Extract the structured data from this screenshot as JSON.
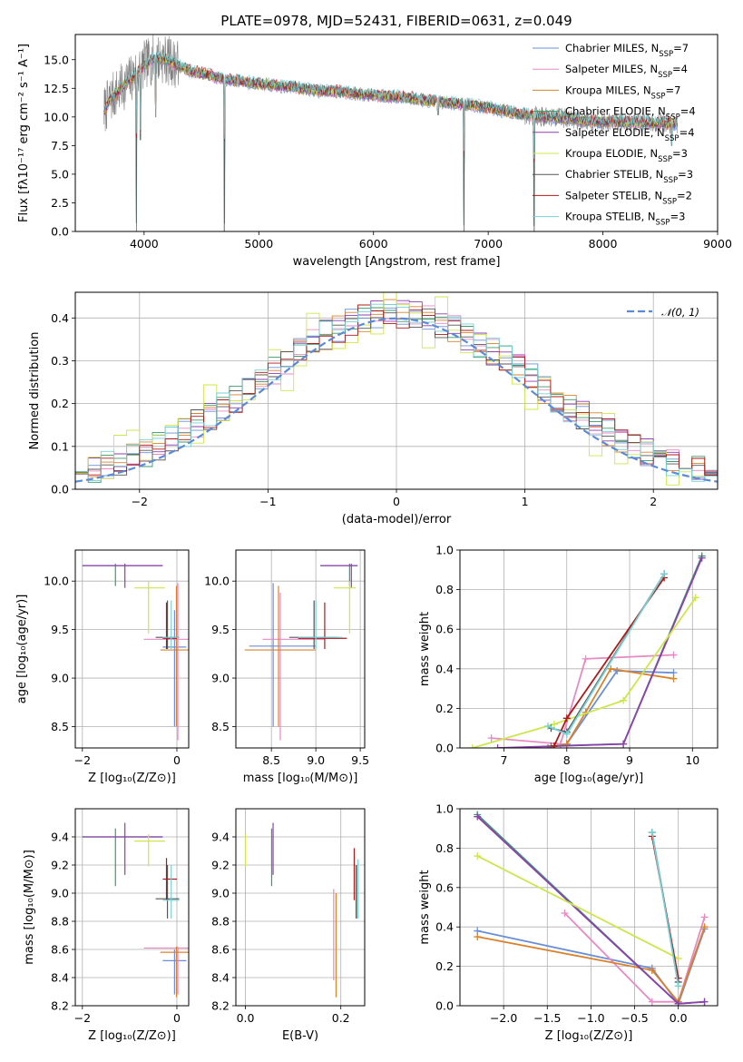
{
  "figure_title": "PLATE=0978, MJD=52431, FIBERID=0631, z=0.049",
  "models": [
    {
      "name": "Chabrier MILES",
      "n_ssp": "7",
      "color": "#6a8fd8"
    },
    {
      "name": "Salpeter MILES",
      "n_ssp": "4",
      "color": "#e78ac3"
    },
    {
      "name": "Kroupa MILES",
      "n_ssp": "7",
      "color": "#d9822b"
    },
    {
      "name": "Chabrier ELODIE",
      "n_ssp": "4",
      "color": "#3a9a6a"
    },
    {
      "name": "Salpeter ELODIE",
      "n_ssp": "4",
      "color": "#8e3fb0"
    },
    {
      "name": "Kroupa ELODIE",
      "n_ssp": "3",
      "color": "#cde64a"
    },
    {
      "name": "Chabrier STELIB",
      "n_ssp": "3",
      "color": "#555555"
    },
    {
      "name": "Salpeter STELIB",
      "n_ssp": "2",
      "color": "#b01818"
    },
    {
      "name": "Kroupa STELIB",
      "n_ssp": "3",
      "color": "#74d2d6"
    }
  ],
  "chart_data": [
    {
      "id": "spectrum",
      "type": "line",
      "xlabel": "wavelength [Angstrom, rest frame]",
      "ylabel": "Flux [fλ10⁻¹⁷ erg cm⁻² s⁻¹ A⁻¹]",
      "xlim": [
        3400,
        9000
      ],
      "ylim": [
        0,
        17.2
      ],
      "xticks": [
        "4000",
        "5000",
        "6000",
        "7000",
        "8000",
        "9000"
      ],
      "yticks": [
        "0.0",
        "2.5",
        "5.0",
        "7.5",
        "10.0",
        "12.5",
        "15.0"
      ],
      "observed_color": "#808080",
      "x": [
        3650,
        3700,
        3800,
        3900,
        4000,
        4100,
        4200,
        4300,
        4400,
        4500,
        4700,
        4900,
        5100,
        5300,
        5500,
        5700,
        5900,
        6100,
        6300,
        6500,
        6700,
        6900,
        7100,
        7300,
        7500,
        7700,
        7900,
        8100,
        8300,
        8500,
        8650
      ],
      "y": [
        10.5,
        11.5,
        12.5,
        13.5,
        14.5,
        15.2,
        15.0,
        14.5,
        14.0,
        13.8,
        13.3,
        13.0,
        12.8,
        12.6,
        12.3,
        12.2,
        12.0,
        11.8,
        11.7,
        11.4,
        11.2,
        11.0,
        10.6,
        10.2,
        10.0,
        9.9,
        9.6,
        9.6,
        9.5,
        9.5,
        9.4
      ],
      "absorption_dips": [
        [
          3933,
          0.0
        ],
        [
          3968,
          8.0
        ],
        [
          4102,
          10.0
        ],
        [
          4700,
          0.0
        ],
        [
          6563,
          10.2
        ],
        [
          6790,
          0.0
        ],
        [
          7400,
          0.0
        ],
        [
          8600,
          7.5
        ],
        [
          8660,
          8.5
        ]
      ]
    },
    {
      "id": "residuals",
      "type": "histogram",
      "xlabel": "(data-model)/error",
      "ylabel": "Normed distribution",
      "xlim": [
        -2.5,
        2.5
      ],
      "ylim": [
        0,
        0.46
      ],
      "xticks": [
        "−2",
        "−1",
        "0",
        "1",
        "2"
      ],
      "yticks": [
        "0.0",
        "0.1",
        "0.2",
        "0.3",
        "0.4"
      ],
      "legend": "𝒩(0, 1)",
      "curve_color": "#5b8ad8",
      "bin_width": 0.1
    },
    {
      "id": "age_vs_Z",
      "type": "scatter",
      "xlabel": "Z [log₁₀(Z/Z⊙)]",
      "ylabel": "age  [log₁₀(age/yr)]",
      "xlim": [
        -2.15,
        0.25
      ],
      "ylim": [
        8.28,
        10.32
      ],
      "xticks": [
        "−2",
        "0"
      ],
      "yticks": [
        "8.5",
        "9.0",
        "9.5",
        "10.0"
      ],
      "points": [
        {
          "m": 0,
          "x": -0.05,
          "y": 9.32,
          "xe": [
            -0.3,
            0.2
          ],
          "ye": [
            8.5,
            9.7
          ]
        },
        {
          "m": 1,
          "x": 0.02,
          "y": 9.4,
          "xe": [
            -0.7,
            0.3
          ],
          "ye": [
            8.36,
            9.98
          ]
        },
        {
          "m": 2,
          "x": -0.01,
          "y": 9.29,
          "xe": [
            -0.35,
            0.3
          ],
          "ye": [
            8.5,
            9.95
          ]
        },
        {
          "m": 3,
          "x": -1.3,
          "y": 10.16,
          "xe": [
            -2.0,
            -0.3
          ],
          "ye": [
            9.95,
            10.18
          ]
        },
        {
          "m": 4,
          "x": -1.1,
          "y": 10.16,
          "xe": [
            -2.0,
            -0.3
          ],
          "ye": [
            9.93,
            10.18
          ]
        },
        {
          "m": 5,
          "x": -0.6,
          "y": 9.93,
          "xe": [
            -0.9,
            -0.25
          ],
          "ye": [
            9.46,
            10.0
          ]
        },
        {
          "m": 6,
          "x": -0.2,
          "y": 9.42,
          "xe": [
            -0.45,
            0.05
          ],
          "ye": [
            9.3,
            9.8
          ]
        },
        {
          "m": 7,
          "x": -0.22,
          "y": 9.41,
          "xe": [
            -0.3,
            0.0
          ],
          "ye": [
            9.3,
            9.78
          ]
        },
        {
          "m": 8,
          "x": -0.12,
          "y": 9.42,
          "xe": [
            -0.3,
            0.05
          ],
          "ye": [
            9.3,
            9.8
          ]
        }
      ]
    },
    {
      "id": "age_vs_mass",
      "type": "scatter",
      "xlabel": "mass [log₁₀(M/M⊙)]",
      "ylabel": "",
      "xlim": [
        8.1,
        9.55
      ],
      "ylim": [
        8.28,
        10.32
      ],
      "xticks": [
        "8.5",
        "9.0",
        "9.5"
      ],
      "yticks": [
        "8.5",
        "9.0",
        "9.5",
        "10.0"
      ],
      "points": [
        {
          "m": 0,
          "x": 8.52,
          "y": 9.33,
          "xe": [
            8.25,
            9.0
          ],
          "ye": [
            8.5,
            9.98
          ]
        },
        {
          "m": 1,
          "x": 8.6,
          "y": 9.4,
          "xe": [
            8.4,
            9.1
          ],
          "ye": [
            8.36,
            9.88
          ]
        },
        {
          "m": 2,
          "x": 8.58,
          "y": 9.29,
          "xe": [
            8.2,
            9.0
          ],
          "ye": [
            8.5,
            9.95
          ]
        },
        {
          "m": 3,
          "x": 9.38,
          "y": 10.16,
          "xe": [
            9.05,
            9.47
          ],
          "ye": [
            9.95,
            10.18
          ]
        },
        {
          "m": 4,
          "x": 9.4,
          "y": 10.16,
          "xe": [
            9.05,
            9.47
          ],
          "ye": [
            9.93,
            10.18
          ]
        },
        {
          "m": 5,
          "x": 9.38,
          "y": 9.93,
          "xe": [
            9.2,
            9.45
          ],
          "ye": [
            9.46,
            10.0
          ]
        },
        {
          "m": 6,
          "x": 8.98,
          "y": 9.42,
          "xe": [
            8.7,
            9.25
          ],
          "ye": [
            9.3,
            9.8
          ]
        },
        {
          "m": 7,
          "x": 9.1,
          "y": 9.41,
          "xe": [
            8.8,
            9.35
          ],
          "ye": [
            9.3,
            9.78
          ]
        },
        {
          "m": 8,
          "x": 9.0,
          "y": 9.42,
          "xe": [
            8.8,
            9.3
          ],
          "ye": [
            9.3,
            9.8
          ]
        }
      ]
    },
    {
      "id": "weight_vs_age",
      "type": "line",
      "xlabel": "age  [log₁₀(age/yr)]",
      "ylabel": "mass weight",
      "xlim": [
        6.3,
        10.4
      ],
      "ylim": [
        0,
        1.0
      ],
      "xticks": [
        "7",
        "8",
        "9",
        "10"
      ],
      "yticks": [
        "0.0",
        "0.2",
        "0.4",
        "0.6",
        "0.8",
        "1.0"
      ],
      "series": [
        {
          "m": 0,
          "x": [
            7.7,
            8.0,
            8.8,
            9.7
          ],
          "y": [
            0.0,
            0.02,
            0.39,
            0.38
          ]
        },
        {
          "m": 1,
          "x": [
            6.8,
            7.9,
            8.3,
            9.7
          ],
          "y": [
            0.05,
            0.02,
            0.45,
            0.47
          ]
        },
        {
          "m": 2,
          "x": [
            7.7,
            8.0,
            8.3,
            8.7,
            9.7
          ],
          "y": [
            0.0,
            0.02,
            0.18,
            0.4,
            0.35
          ]
        },
        {
          "m": 3,
          "x": [
            7.75,
            8.9,
            10.15
          ],
          "y": [
            0.01,
            0.02,
            0.97
          ]
        },
        {
          "m": 4,
          "x": [
            6.9,
            8.9,
            10.15
          ],
          "y": [
            0.0,
            0.02,
            0.96
          ]
        },
        {
          "m": 5,
          "x": [
            6.5,
            7.8,
            8.9,
            10.05
          ],
          "y": [
            0.0,
            0.12,
            0.24,
            0.76
          ]
        },
        {
          "m": 6,
          "x": [
            7.75,
            8.0,
            9.55
          ],
          "y": [
            0.1,
            0.08,
            0.88
          ]
        },
        {
          "m": 7,
          "x": [
            7.8,
            8.0,
            9.55
          ],
          "y": [
            0.01,
            0.15,
            0.86
          ]
        },
        {
          "m": 8,
          "x": [
            7.7,
            8.0,
            9.55
          ],
          "y": [
            0.11,
            0.07,
            0.88
          ]
        }
      ]
    },
    {
      "id": "mass_vs_Z",
      "type": "scatter",
      "xlabel": "Z [log₁₀(Z/Z⊙)]",
      "ylabel": "mass [log₁₀(M/M⊙)]",
      "xlim": [
        -2.15,
        0.25
      ],
      "ylim": [
        8.2,
        9.6
      ],
      "xticks": [
        "−2",
        "0"
      ],
      "yticks": [
        "8.2",
        "8.4",
        "8.6",
        "8.8",
        "9.0",
        "9.2",
        "9.4"
      ],
      "points": [
        {
          "m": 0,
          "x": -0.05,
          "y": 8.52,
          "xe": [
            -0.3,
            0.2
          ],
          "ye": [
            8.28,
            8.6
          ]
        },
        {
          "m": 1,
          "x": 0.02,
          "y": 8.61,
          "xe": [
            -0.7,
            0.3
          ],
          "ye": [
            8.28,
            8.62
          ]
        },
        {
          "m": 2,
          "x": -0.01,
          "y": 8.58,
          "xe": [
            -0.35,
            0.3
          ],
          "ye": [
            8.26,
            8.62
          ]
        },
        {
          "m": 3,
          "x": -1.3,
          "y": 9.4,
          "xe": [
            -2.0,
            -0.3
          ],
          "ye": [
            9.05,
            9.46
          ]
        },
        {
          "m": 4,
          "x": -1.1,
          "y": 9.4,
          "xe": [
            -2.0,
            -0.3
          ],
          "ye": [
            9.13,
            9.5
          ]
        },
        {
          "m": 5,
          "x": -0.6,
          "y": 9.37,
          "xe": [
            -0.9,
            -0.25
          ],
          "ye": [
            9.19,
            9.42
          ]
        },
        {
          "m": 6,
          "x": -0.2,
          "y": 8.96,
          "xe": [
            -0.45,
            0.05
          ],
          "ye": [
            8.82,
            9.2
          ]
        },
        {
          "m": 7,
          "x": -0.22,
          "y": 9.1,
          "xe": [
            -0.3,
            0.0
          ],
          "ye": [
            8.95,
            9.25
          ]
        },
        {
          "m": 8,
          "x": -0.12,
          "y": 8.95,
          "xe": [
            -0.3,
            0.05
          ],
          "ye": [
            8.82,
            9.2
          ]
        }
      ]
    },
    {
      "id": "mass_vs_ebv",
      "type": "scatter",
      "xlabel": "E(B-V)",
      "ylabel": "",
      "xlim": [
        -0.02,
        0.25
      ],
      "ylim": [
        8.2,
        9.6
      ],
      "xticks": [
        "0.0",
        "0.2"
      ],
      "yticks": [
        "8.2",
        "8.4",
        "8.6",
        "8.8",
        "9.0",
        "9.2",
        "9.4"
      ],
      "points": [
        {
          "m": 0,
          "x": 0.235,
          "y": 8.95,
          "xe": [
            0.235,
            0.235
          ],
          "ye": [
            8.82,
            9.2
          ]
        },
        {
          "m": 1,
          "x": 0.185,
          "y": 8.7,
          "xe": [
            0.185,
            0.185
          ],
          "ye": [
            8.38,
            9.03
          ]
        },
        {
          "m": 2,
          "x": 0.19,
          "y": 8.7,
          "xe": [
            0.19,
            0.19
          ],
          "ye": [
            8.26,
            9.0
          ]
        },
        {
          "m": 3,
          "x": 0.055,
          "y": 9.25,
          "xe": [
            0.055,
            0.055
          ],
          "ye": [
            9.05,
            9.46
          ]
        },
        {
          "m": 4,
          "x": 0.058,
          "y": 9.3,
          "xe": [
            0.058,
            0.058
          ],
          "ye": [
            9.13,
            9.5
          ]
        },
        {
          "m": 5,
          "x": 0.0,
          "y": 9.3,
          "xe": [
            0.0,
            0.0
          ],
          "ye": [
            9.19,
            9.42
          ]
        },
        {
          "m": 6,
          "x": 0.232,
          "y": 9.0,
          "xe": [
            0.232,
            0.232
          ],
          "ye": [
            8.82,
            9.2
          ]
        },
        {
          "m": 7,
          "x": 0.228,
          "y": 9.1,
          "xe": [
            0.228,
            0.228
          ],
          "ye": [
            8.95,
            9.32
          ]
        },
        {
          "m": 8,
          "x": 0.236,
          "y": 9.0,
          "xe": [
            0.236,
            0.236
          ],
          "ye": [
            8.82,
            9.24
          ]
        }
      ]
    },
    {
      "id": "weight_vs_Z",
      "type": "line",
      "xlabel": "Z [log₁₀(Z/Z⊙)]",
      "ylabel": "mass weight",
      "xlim": [
        -2.5,
        0.45
      ],
      "ylim": [
        0,
        1.0
      ],
      "xticks": [
        "−2.0",
        "−1.5",
        "−1.0",
        "−0.5",
        "0.0"
      ],
      "yticks": [
        "0.0",
        "0.2",
        "0.4",
        "0.6",
        "0.8",
        "1.0"
      ],
      "series": [
        {
          "m": 0,
          "x": [
            -2.3,
            -0.3,
            0.0,
            0.3
          ],
          "y": [
            0.38,
            0.19,
            0.01,
            0.39
          ]
        },
        {
          "m": 1,
          "x": [
            -1.3,
            -0.3,
            0.0,
            0.3
          ],
          "y": [
            0.47,
            0.02,
            0.02,
            0.45
          ]
        },
        {
          "m": 2,
          "x": [
            -2.3,
            -0.3,
            0.0,
            0.3
          ],
          "y": [
            0.35,
            0.18,
            0.02,
            0.4
          ]
        },
        {
          "m": 3,
          "x": [
            -2.3,
            0.0,
            0.3
          ],
          "y": [
            0.97,
            0.01,
            0.02
          ]
        },
        {
          "m": 4,
          "x": [
            -2.3,
            0.0,
            0.3
          ],
          "y": [
            0.96,
            0.01,
            0.02
          ]
        },
        {
          "m": 5,
          "x": [
            -2.3,
            0.0
          ],
          "y": [
            0.76,
            0.24
          ]
        },
        {
          "m": 6,
          "x": [
            -0.3,
            0.0
          ],
          "y": [
            0.88,
            0.12
          ]
        },
        {
          "m": 7,
          "x": [
            -0.3,
            0.0
          ],
          "y": [
            0.86,
            0.14
          ]
        },
        {
          "m": 8,
          "x": [
            -0.3,
            0.0
          ],
          "y": [
            0.88,
            0.1
          ]
        }
      ]
    }
  ]
}
